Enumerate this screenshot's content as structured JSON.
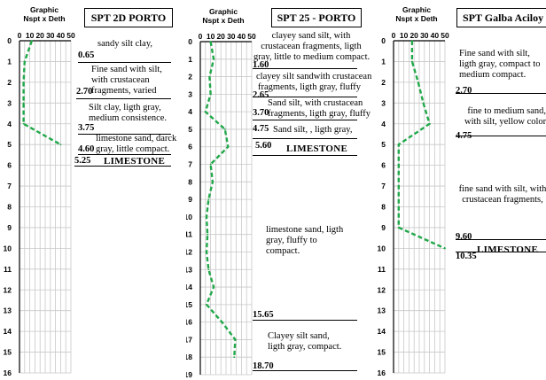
{
  "axis_header": {
    "line1": "Graphic",
    "line2": "Nspt x Deth"
  },
  "x_ticks": [
    "0",
    "10",
    "20",
    "30",
    "40",
    "50"
  ],
  "chart_data": [
    {
      "type": "line",
      "title": "SPT 2D PORTO",
      "y_max": 16,
      "y_ticks": [
        "0",
        "1",
        "2",
        "3",
        "4",
        "5",
        "6",
        "7",
        "8",
        "9",
        "10",
        "11",
        "12",
        "13",
        "14",
        "15",
        "16"
      ],
      "series": [
        {
          "depth": [
            0,
            1,
            2,
            3,
            4,
            5
          ],
          "nspt": [
            12,
            5,
            4,
            4,
            4,
            40
          ]
        }
      ],
      "depth_marks": [
        "0.65",
        "2.70",
        "3.75",
        "4.60",
        "5.25"
      ],
      "layers": [
        "sandy silt clay,",
        "Fine sand with silt,\nwith crustacean\nfragments, varied",
        "Silt clay, ligth gray,\nmedium consistence.",
        "limestone sand, darck\ngray, little compact.",
        "LIMESTONE"
      ]
    },
    {
      "type": "line",
      "title": "SPT 25 - PORTO",
      "y_max": 19,
      "y_ticks": [
        "0",
        "1",
        "2",
        "3",
        "4",
        "5",
        "6",
        "7",
        "8",
        "9",
        "10",
        "11",
        "12",
        "13",
        "14",
        "15",
        "16",
        "17",
        "18",
        "19"
      ],
      "series": [
        {
          "depth": [
            0,
            1,
            2,
            3,
            4,
            5,
            6,
            7,
            8,
            9,
            10,
            11,
            12,
            13,
            14,
            15,
            16,
            17,
            18
          ],
          "nspt": [
            10,
            13,
            9,
            10,
            5,
            24,
            27,
            10,
            12,
            8,
            6,
            7,
            6,
            8,
            13,
            6,
            21,
            34,
            33
          ]
        }
      ],
      "depth_marks": [
        "1.60",
        "2.65",
        "3.70",
        "4.75",
        "5.60",
        "15.65",
        "18.70"
      ],
      "layers": [
        "clayey sand silt, with\ncrustacean fragments, ligth\ngray, little to medium compact.",
        "clayey silt sandwith crustacean\nfragments, ligth gray, fluffy",
        "Sand silt, with crustacean\nfragments, ligth gray, fluffy",
        "Sand silt, , ligth gray,",
        "LIMESTONE",
        "limestone sand, ligth\ngray, fluffy to\ncompact.",
        "Clayey silt sand,\nligth gray, compact."
      ]
    },
    {
      "type": "line",
      "title": "SPT Galba Aciloy",
      "y_max": 16,
      "y_ticks": [
        "0",
        "1",
        "2",
        "3",
        "4",
        "5",
        "6",
        "7",
        "8",
        "9",
        "10",
        "11",
        "12",
        "13",
        "14",
        "15",
        "16"
      ],
      "series": [
        {
          "depth": [
            0,
            1,
            2,
            3,
            4,
            5,
            6,
            7,
            8,
            9,
            10
          ],
          "nspt": [
            18,
            18,
            24,
            29,
            35,
            5,
            5,
            5,
            5,
            5,
            50
          ]
        }
      ],
      "depth_marks": [
        "2.70",
        "4.75",
        "9.60",
        "10.35"
      ],
      "layers": [
        "Fine sand with silt,\nligth gray, compact to\nmedium compact.",
        "fine to medium sand,\nwith silt, yellow color",
        "fine sand with silt, with\ncrustacean fragments,",
        "LIMESTONE"
      ]
    }
  ],
  "colors": {
    "profile": "#22a84a",
    "grid": "#c8c8c8",
    "axis": "#000000"
  }
}
